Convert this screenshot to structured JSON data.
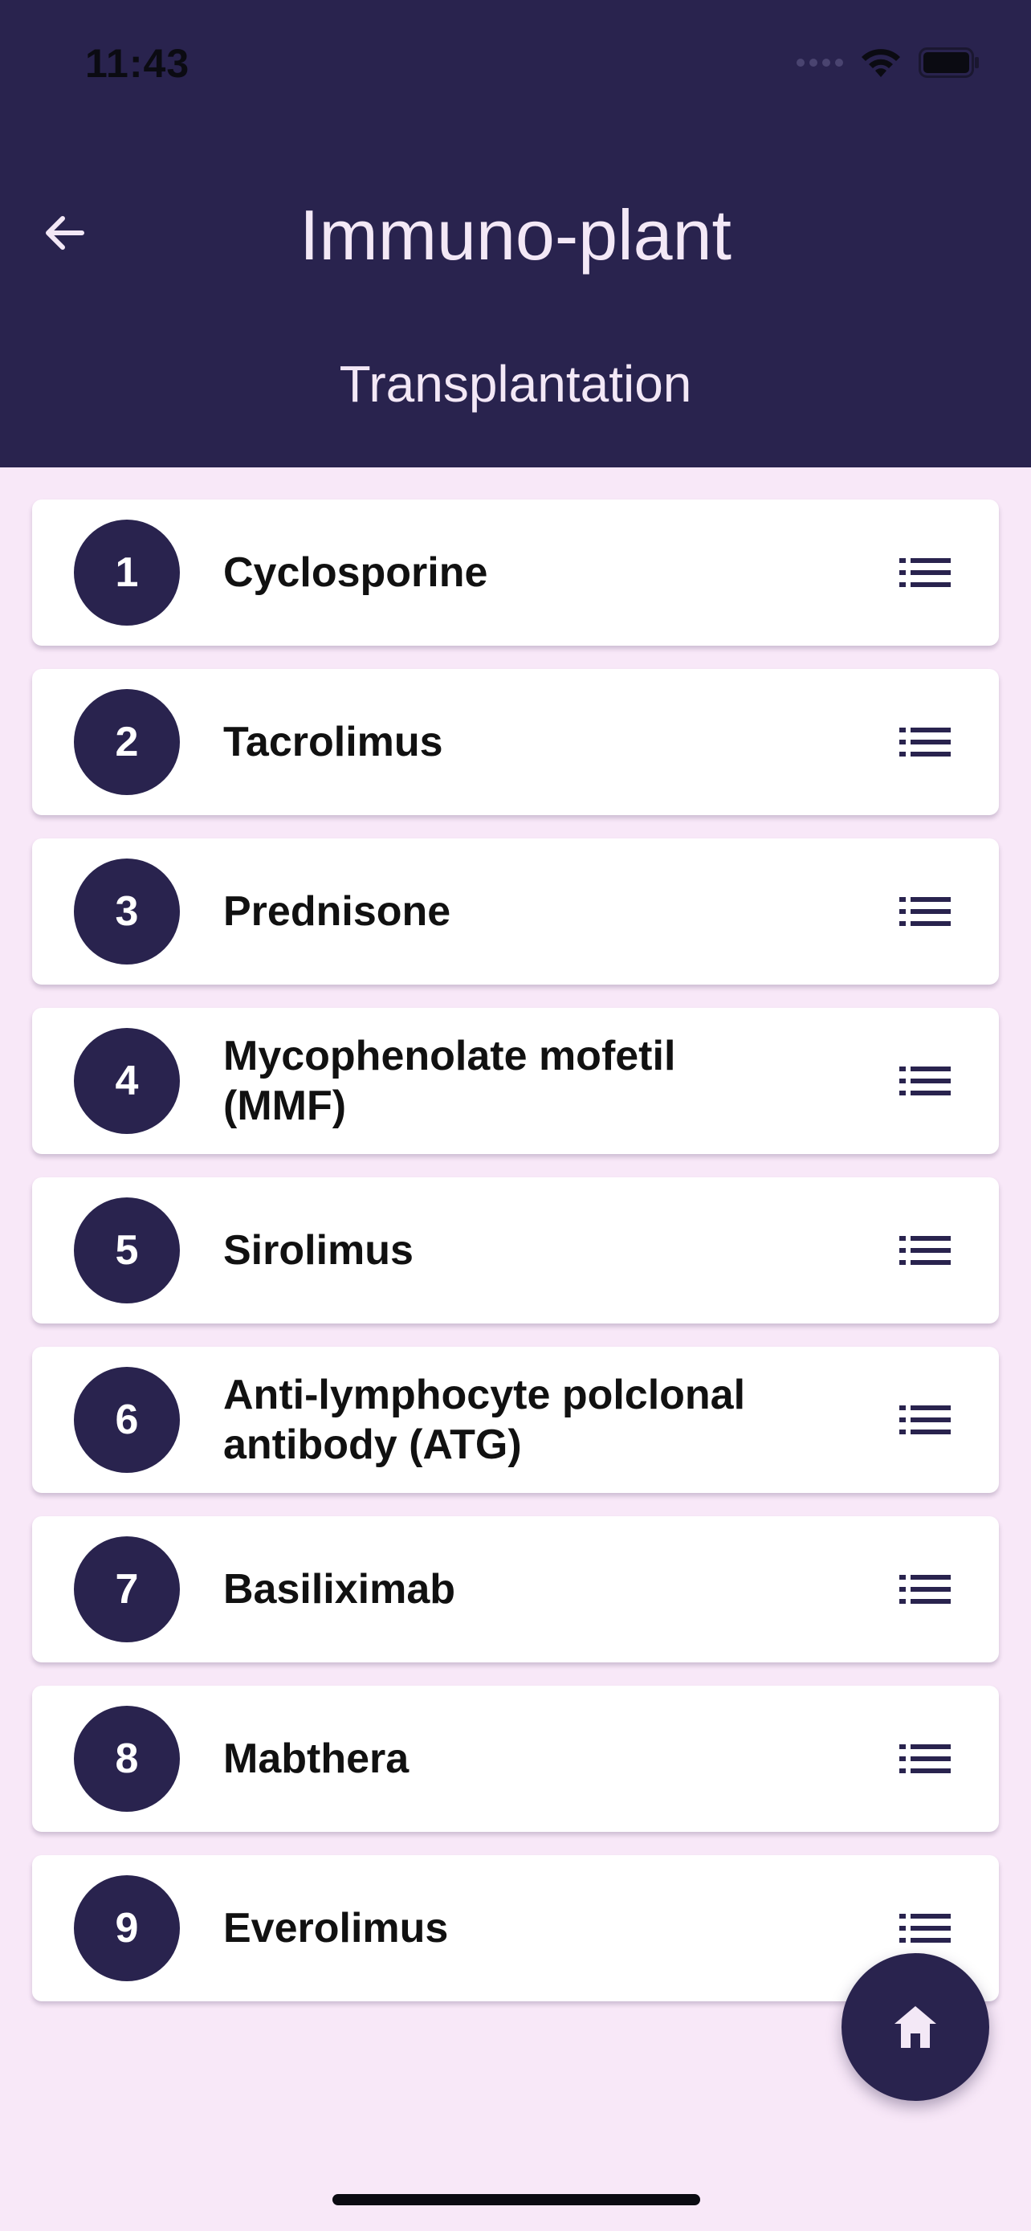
{
  "status_bar": {
    "time": "11:43"
  },
  "header": {
    "title": "Immuno-plant",
    "subtitle": "Transplantation",
    "back_icon": "arrow-left-icon"
  },
  "drugs": [
    {
      "number": "1",
      "name": "Cyclosporine"
    },
    {
      "number": "2",
      "name": "Tacrolimus"
    },
    {
      "number": "3",
      "name": "Prednisone"
    },
    {
      "number": "4",
      "name": "Mycophenolate mofetil (MMF)"
    },
    {
      "number": "5",
      "name": "Sirolimus"
    },
    {
      "number": "6",
      "name": "Anti-lymphocyte polclonal antibody (ATG)"
    },
    {
      "number": "7",
      "name": "Basiliximab"
    },
    {
      "number": "8",
      "name": "Mabthera"
    },
    {
      "number": "9",
      "name": "Everolimus"
    }
  ],
  "item_icon": "list-icon",
  "fab": {
    "icon": "home-icon"
  },
  "colors": {
    "header_bg": "#29234e",
    "page_bg": "#f8e8f8",
    "card_bg": "#ffffff",
    "badge_bg": "#29234e"
  }
}
